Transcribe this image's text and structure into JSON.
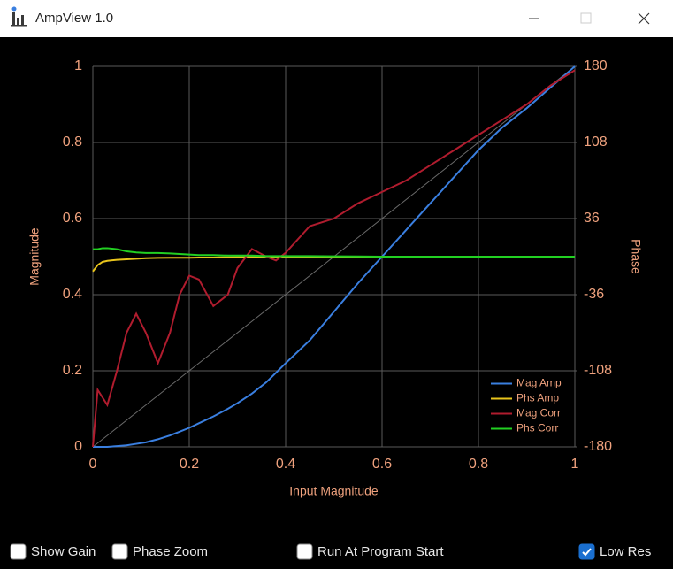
{
  "window": {
    "title": "AmpView 1.0"
  },
  "chart_data": {
    "type": "line",
    "x_label": "Input Magnitude",
    "y_label": "Magnitude",
    "y2_label": "Phase",
    "x": [
      0,
      0.01,
      0.02,
      0.03,
      0.05,
      0.07,
      0.09,
      0.11,
      0.135,
      0.16,
      0.18,
      0.2,
      0.22,
      0.25,
      0.28,
      0.3,
      0.33,
      0.36,
      0.38,
      0.4,
      0.45,
      0.5,
      0.55,
      0.6,
      0.65,
      0.7,
      0.75,
      0.8,
      0.85,
      0.9,
      0.95,
      1
    ],
    "series": [
      {
        "name": "Mag Amp",
        "color": "#3a7fe0",
        "values": [
          0,
          0,
          0,
          0,
          0.002,
          0.004,
          0.008,
          0.012,
          0.02,
          0.03,
          0.04,
          0.05,
          0.062,
          0.08,
          0.1,
          0.115,
          0.14,
          0.17,
          0.195,
          0.22,
          0.28,
          0.355,
          0.43,
          0.5,
          0.57,
          0.64,
          0.71,
          0.78,
          0.84,
          0.89,
          0.945,
          1
        ]
      },
      {
        "name": "Phs Amp",
        "color": "#e8c41c",
        "axis": "y2",
        "values": [
          -14,
          -8,
          -5,
          -4,
          -3,
          -2.5,
          -2,
          -1.5,
          -1.2,
          -1,
          -1,
          -1,
          -0.8,
          -0.8,
          -0.6,
          -0.5,
          -0.5,
          -0.4,
          -0.3,
          -0.3,
          -0.2,
          -0.2,
          -0.1,
          0,
          0,
          0,
          0,
          0,
          0,
          0,
          0,
          0
        ]
      },
      {
        "name": "Mag Corr",
        "color": "#b01c2e",
        "values": [
          0,
          0.15,
          0.13,
          0.11,
          0.2,
          0.3,
          0.35,
          0.3,
          0.22,
          0.3,
          0.4,
          0.45,
          0.44,
          0.37,
          0.4,
          0.47,
          0.52,
          0.5,
          0.49,
          0.51,
          0.58,
          0.6,
          0.64,
          0.67,
          0.7,
          0.74,
          0.78,
          0.82,
          0.86,
          0.9,
          0.95,
          0.99
        ]
      },
      {
        "name": "Phs Corr",
        "color": "#22d022",
        "axis": "y2",
        "values": [
          7,
          7,
          8,
          8,
          7,
          5,
          4,
          3.5,
          3.5,
          3,
          2.5,
          2,
          1.5,
          1.5,
          1,
          1,
          1,
          0.5,
          0.5,
          0.5,
          0.5,
          0.3,
          0.2,
          0,
          0,
          0,
          0,
          0,
          0,
          0,
          0,
          0
        ]
      }
    ],
    "xlim": [
      0,
      1
    ],
    "xticks": [
      0,
      0.2,
      0.4,
      0.6,
      0.8,
      1
    ],
    "ylim": [
      0,
      1
    ],
    "yticks": [
      0,
      0.2,
      0.4,
      0.6,
      0.8,
      1
    ],
    "y2lim": [
      -180,
      180
    ],
    "y2ticks": [
      -180,
      -108,
      -36,
      36,
      108,
      180
    ],
    "grid": true,
    "legend": "lower right"
  },
  "controls": [
    {
      "label": "Show Gain",
      "checked": false
    },
    {
      "label": "Phase Zoom",
      "checked": false
    },
    {
      "label": "Run At Program Start",
      "checked": false
    },
    {
      "label": "Low Res",
      "checked": true
    }
  ]
}
